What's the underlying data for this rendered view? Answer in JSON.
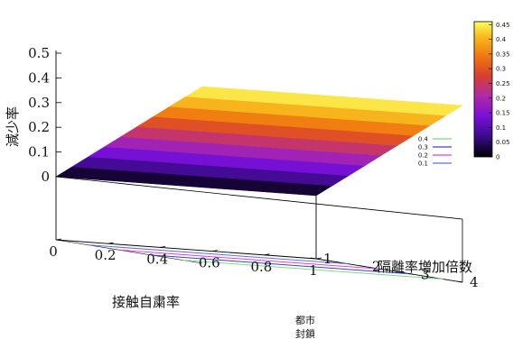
{
  "chart_data": {
    "type": "surface3d",
    "x_axis": {
      "label": "接触自粛率",
      "ticks": [
        "0",
        "0.2",
        "0.4",
        "0.6",
        "0.8",
        "1"
      ],
      "range": [
        0,
        1
      ]
    },
    "y_axis": {
      "label": "隔離率増加倍数",
      "ticks": [
        "1",
        "2",
        "3",
        "4"
      ],
      "range": [
        1,
        4
      ]
    },
    "z_axis": {
      "label": "減少率",
      "ticks": [
        "0",
        "0.1",
        "0.2",
        "0.3",
        "0.4",
        "0.5"
      ],
      "range": [
        0,
        0.5
      ]
    },
    "corner_label": [
      "都市",
      "封鎖"
    ],
    "surface_corners": {
      "x0_y1": 0.0,
      "x0_y4": 0.46,
      "x1_y1": 0.0,
      "x1_y4": 0.46
    },
    "colorbar": {
      "ticks": [
        "0.45",
        "0.4",
        "0.35",
        "0.3",
        "0.25",
        "0.2",
        "0.15",
        "0.1",
        "0.05",
        "0"
      ],
      "range": [
        0,
        0.46
      ],
      "palette": [
        "#000000",
        "#3a0a8a",
        "#7a10d8",
        "#b02aa8",
        "#d8402f",
        "#f07a10",
        "#f8c020",
        "#ffff60"
      ]
    },
    "contours": [
      {
        "level": "0.4",
        "color": "#80d880",
        "y_at_level": 3.6
      },
      {
        "level": "0.3",
        "color": "#4040c8",
        "y_at_level": 2.95
      },
      {
        "level": "0.2",
        "color": "#e040e0",
        "y_at_level": 2.3
      },
      {
        "level": "0.1",
        "color": "#6070e0",
        "y_at_level": 1.65
      }
    ]
  }
}
